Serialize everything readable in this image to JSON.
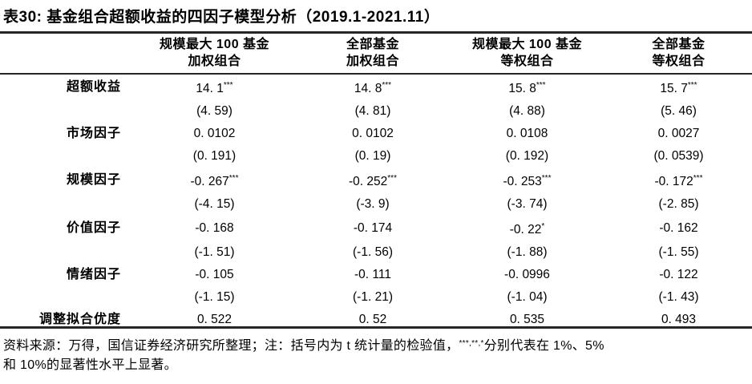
{
  "title": {
    "text": "表30: 基金组合超额收益的四因子模型分析（2019.1-2021.11）"
  },
  "table": {
    "columns": [
      {
        "line1": "规模最大 100 基金",
        "line2": "加权组合"
      },
      {
        "line1": "全部基金",
        "line2": "加权组合"
      },
      {
        "line1": "规模最大 100 基金",
        "line2": "等权组合"
      },
      {
        "line1": "全部基金",
        "line2": "等权组合"
      }
    ],
    "rows": [
      {
        "label": "超额收益",
        "cells": [
          {
            "v": "14. 1",
            "sup": "***"
          },
          {
            "v": "14. 8",
            "sup": "***"
          },
          {
            "v": "15. 8",
            "sup": "***"
          },
          {
            "v": "15. 7",
            "sup": "***"
          }
        ]
      },
      {
        "label": "",
        "cells": [
          {
            "v": "(4. 59)"
          },
          {
            "v": "(4. 81)"
          },
          {
            "v": "(4. 88)"
          },
          {
            "v": "(5. 46)"
          }
        ]
      },
      {
        "label": "市场因子",
        "cells": [
          {
            "v": "0. 0102"
          },
          {
            "v": "0. 0102"
          },
          {
            "v": "0. 0108"
          },
          {
            "v": "0. 0027"
          }
        ]
      },
      {
        "label": "",
        "cells": [
          {
            "v": "(0. 191)"
          },
          {
            "v": "(0. 19)"
          },
          {
            "v": "(0. 192)"
          },
          {
            "v": "(0. 0539)"
          }
        ]
      },
      {
        "label": "规模因子",
        "cells": [
          {
            "v": "-0. 267",
            "sup": "***"
          },
          {
            "v": "-0. 252",
            "sup": "***"
          },
          {
            "v": "-0. 253",
            "sup": "***"
          },
          {
            "v": "-0. 172",
            "sup": "***"
          }
        ]
      },
      {
        "label": "",
        "cells": [
          {
            "v": "(-4. 15)"
          },
          {
            "v": "(-3. 9)"
          },
          {
            "v": "(-3. 74)"
          },
          {
            "v": "(-2. 85)"
          }
        ]
      },
      {
        "label": "价值因子",
        "cells": [
          {
            "v": "-0. 168"
          },
          {
            "v": "-0. 174"
          },
          {
            "v": "-0. 22",
            "sup": "*"
          },
          {
            "v": "-0. 162"
          }
        ]
      },
      {
        "label": "",
        "cells": [
          {
            "v": "(-1. 51)"
          },
          {
            "v": "(-1. 56)"
          },
          {
            "v": "(-1. 88)"
          },
          {
            "v": "(-1. 55)"
          }
        ]
      },
      {
        "label": "情绪因子",
        "cells": [
          {
            "v": "-0. 105"
          },
          {
            "v": "-0. 111"
          },
          {
            "v": "-0. 0996"
          },
          {
            "v": "-0. 122"
          }
        ]
      },
      {
        "label": "",
        "cells": [
          {
            "v": "(-1. 15)"
          },
          {
            "v": "(-1. 21)"
          },
          {
            "v": "(-1. 04)"
          },
          {
            "v": "(-1. 43)"
          }
        ]
      },
      {
        "label": "调整拟合优度",
        "cells": [
          {
            "v": "0. 522"
          },
          {
            "v": "0. 52"
          },
          {
            "v": "0. 535"
          },
          {
            "v": "0. 493"
          }
        ]
      }
    ]
  },
  "footer": {
    "line1_pre": "资料来源：万得，国信证券经济研究所整理；注：括号内为 t 统计量的检验值，",
    "sups": "***,**,*",
    "line1_post": "分别代表在 1%、5%",
    "line2": "和 10%的显著性水平上显著。"
  },
  "colors": {
    "text": "#000000",
    "rule": "#262626",
    "background": "#ffffff"
  }
}
